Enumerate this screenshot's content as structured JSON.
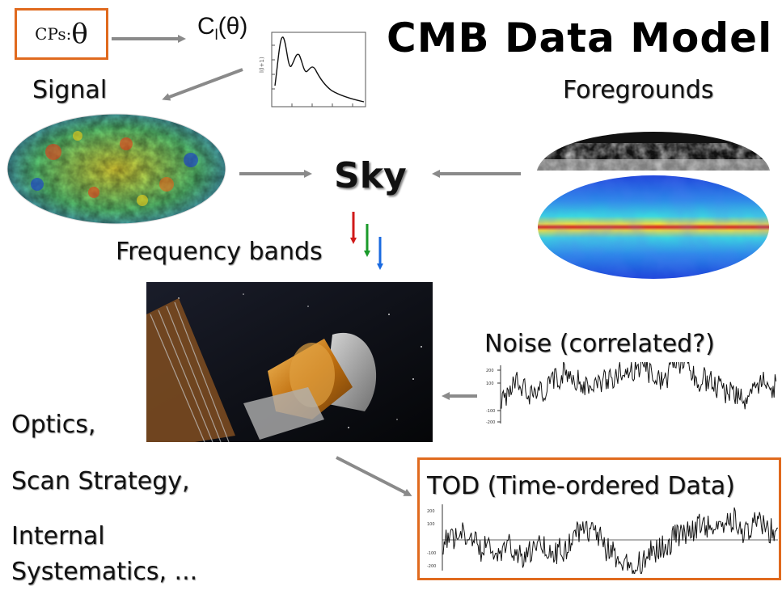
{
  "title": "CMB Data Model",
  "cps": {
    "prefix": "CPs:",
    "symbol": "θ"
  },
  "cl": {
    "base": "C",
    "sub": "l",
    "arg": "(θ)"
  },
  "labels": {
    "signal": "Signal",
    "foregrounds": "Foregrounds",
    "sky": "Sky",
    "frequency_bands": "Frequency bands",
    "noise": "Noise (correlated?)",
    "tod": "TOD (Time-ordered Data)",
    "optics": "Optics,",
    "scan": "Scan Strategy,",
    "internal": "Internal",
    "systematics": "Systematics, ..."
  },
  "colors": {
    "accent_box": "#e06a1e",
    "arrow": "#8a8a8a",
    "band_red": "#d01a1a",
    "band_green": "#1a9a2a",
    "band_blue": "#1a6ae0"
  }
}
